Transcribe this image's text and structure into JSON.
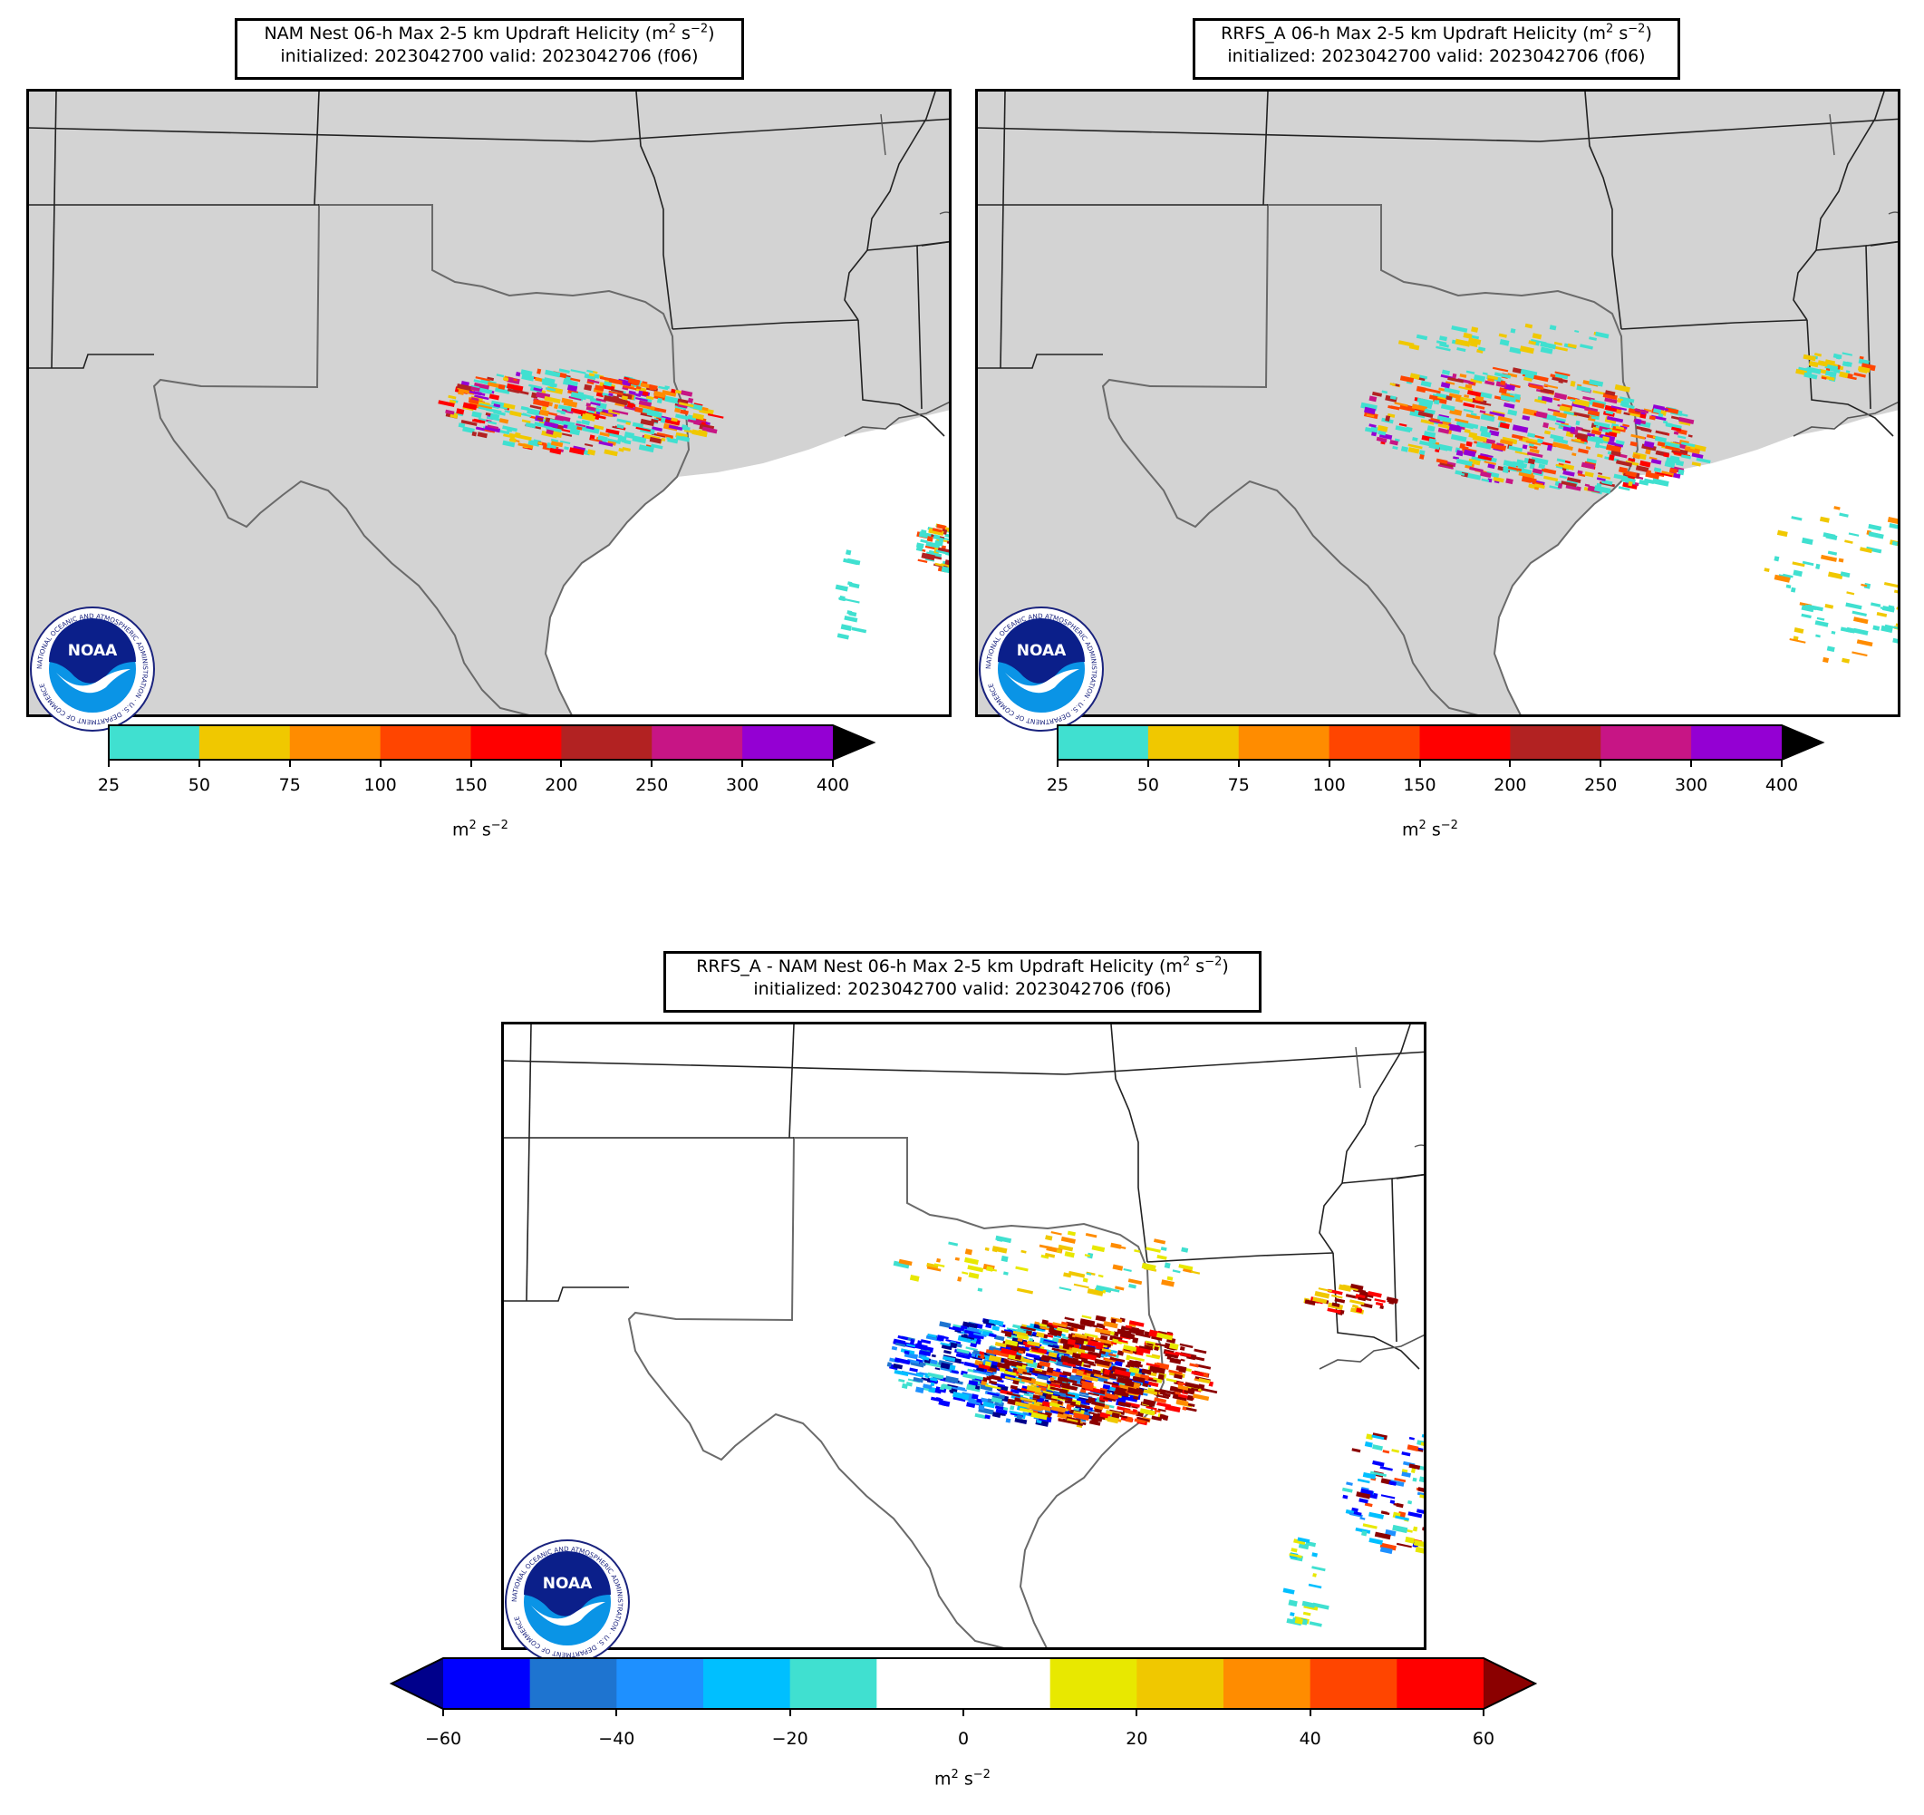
{
  "panels": [
    {
      "id": "nam",
      "title_line1": "NAM Nest 06-h Max 2-5 km Updraft Helicity (m",
      "title_line2": "initialized: 2023042700 valid: 2023042706 (f06)",
      "units": "m",
      "colorbar": {
        "ticks": [
          "25",
          "50",
          "75",
          "100",
          "150",
          "200",
          "250",
          "300",
          "400"
        ],
        "colors": [
          "#40e0d0",
          "#f0c800",
          "#ff8c00",
          "#ff4500",
          "#ff0000",
          "#b22222",
          "#c71585",
          "#9400d3"
        ],
        "extend_color": "#000000"
      }
    },
    {
      "id": "rrfs",
      "title_line1": "RRFS_A 06-h Max 2-5 km Updraft Helicity (m",
      "title_line2": "initialized: 2023042700 valid: 2023042706 (f06)",
      "units": "m",
      "colorbar": {
        "ticks": [
          "25",
          "50",
          "75",
          "100",
          "150",
          "200",
          "250",
          "300",
          "400"
        ],
        "colors": [
          "#40e0d0",
          "#f0c800",
          "#ff8c00",
          "#ff4500",
          "#ff0000",
          "#b22222",
          "#c71585",
          "#9400d3"
        ],
        "extend_color": "#000000"
      }
    },
    {
      "id": "diff",
      "title_line1": "RRFS_A - NAM Nest 06-h Max 2-5 km Updraft Helicity (m",
      "title_line2": "initialized: 2023042700 valid: 2023042706 (f06)",
      "units": "m",
      "colorbar": {
        "ticks": [
          "−60",
          "−40",
          "−20",
          "0",
          "20",
          "40",
          "60"
        ],
        "colors": [
          "#0000ff",
          "#1e74d0",
          "#1e90ff",
          "#00bfff",
          "#40e0d0",
          "#ffffff",
          "#ffffff",
          "#e8e800",
          "#f0c800",
          "#ff8c00",
          "#ff4500",
          "#ff0000"
        ],
        "extend_low_color": "#00008b",
        "extend_high_color": "#8b0000"
      }
    }
  ],
  "title_sup": "2",
  "title_s": " s",
  "title_sup2": "−2",
  "title_close": ")",
  "units_sup": "2",
  "units_s": " s",
  "units_sup2": "−2",
  "logo": {
    "text": "NOAA",
    "ring_text": "NATIONAL OCEANIC AND ATMOSPHERIC ADMINISTRATION · U.S. DEPARTMENT OF COMMERCE"
  },
  "map_colors": {
    "land_bg": "#d3d3d3",
    "ocean_bg": "#ffffff",
    "diff_bg": "#ffffff"
  }
}
